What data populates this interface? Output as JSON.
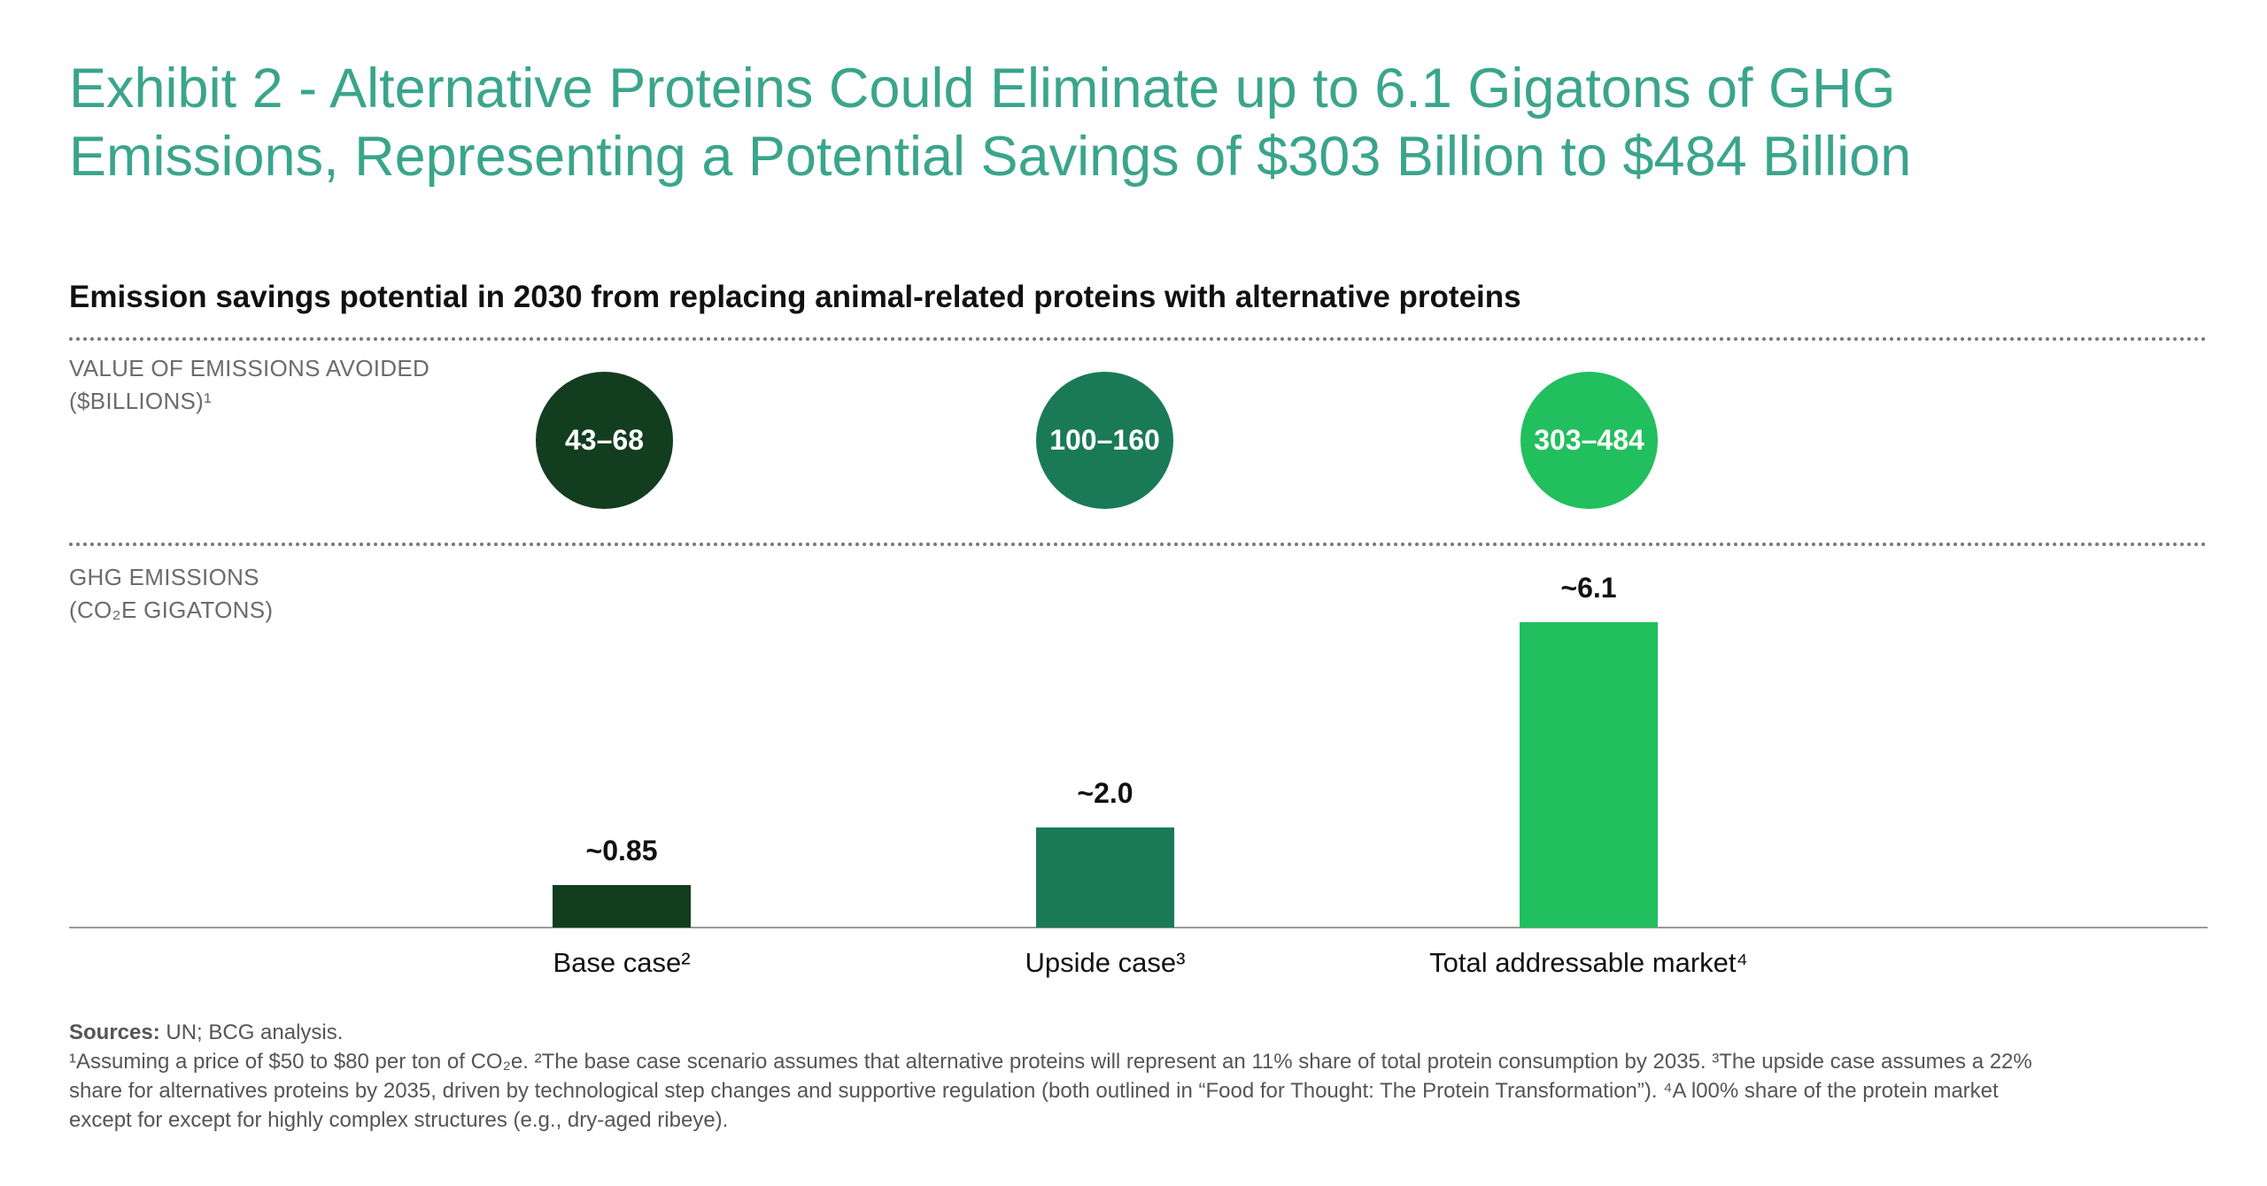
{
  "header": {
    "title_line1": "Exhibit 2 - Alternative Proteins Could Eliminate up to 6.1 Gigatons of GHG",
    "title_line2": "Emissions, Representing a Potential Savings of $303 Billion to $484 Billion",
    "subtitle": "Emission savings potential in 2030 from replacing animal-related proteins with alternative proteins"
  },
  "rows": {
    "value_label_line1": "VALUE OF EMISSIONS AVOIDED",
    "value_label_line2": "($BILLIONS)¹",
    "ghg_label_line1": "GHG EMISSIONS",
    "ghg_label_line2": "(CO₂E GIGATONS)"
  },
  "chart_data": {
    "type": "bar",
    "categories": [
      "Base case²",
      "Upside case³",
      "Total addressable market⁴"
    ],
    "values": [
      0.85,
      2.0,
      6.1
    ],
    "value_labels": [
      "~0.85",
      "~2.0",
      "~6.1"
    ],
    "emissions_value_ranges": [
      "43–68",
      "100–160",
      "303–484"
    ],
    "colors": [
      "#123d1f",
      "#1a7a57",
      "#22bf5e"
    ],
    "title": "Emission savings potential in 2030 from replacing animal-related proteins with alternative proteins",
    "ylabel": "GHG EMISSIONS (CO₂E GIGATONS)",
    "grid": false,
    "legend": "none"
  },
  "footer": {
    "sources_label": "Sources:",
    "sources_text": " UN; BCG analysis.",
    "note_line1": "¹Assuming a price of $50 to $80 per ton of CO₂e. ²The base case scenario assumes that alternative proteins will represent an 11% share of total protein consumption by 2035. ³The upside case assumes a 22%",
    "note_line2": "share for alternatives proteins by 2035, driven by technological step changes and supportive regulation (both outlined in “Food for Thought: The Protein Transformation”). ⁴A l00% share of the protein market",
    "note_line3": "except for except for highly complex structures (e.g., dry-aged ribeye)."
  }
}
